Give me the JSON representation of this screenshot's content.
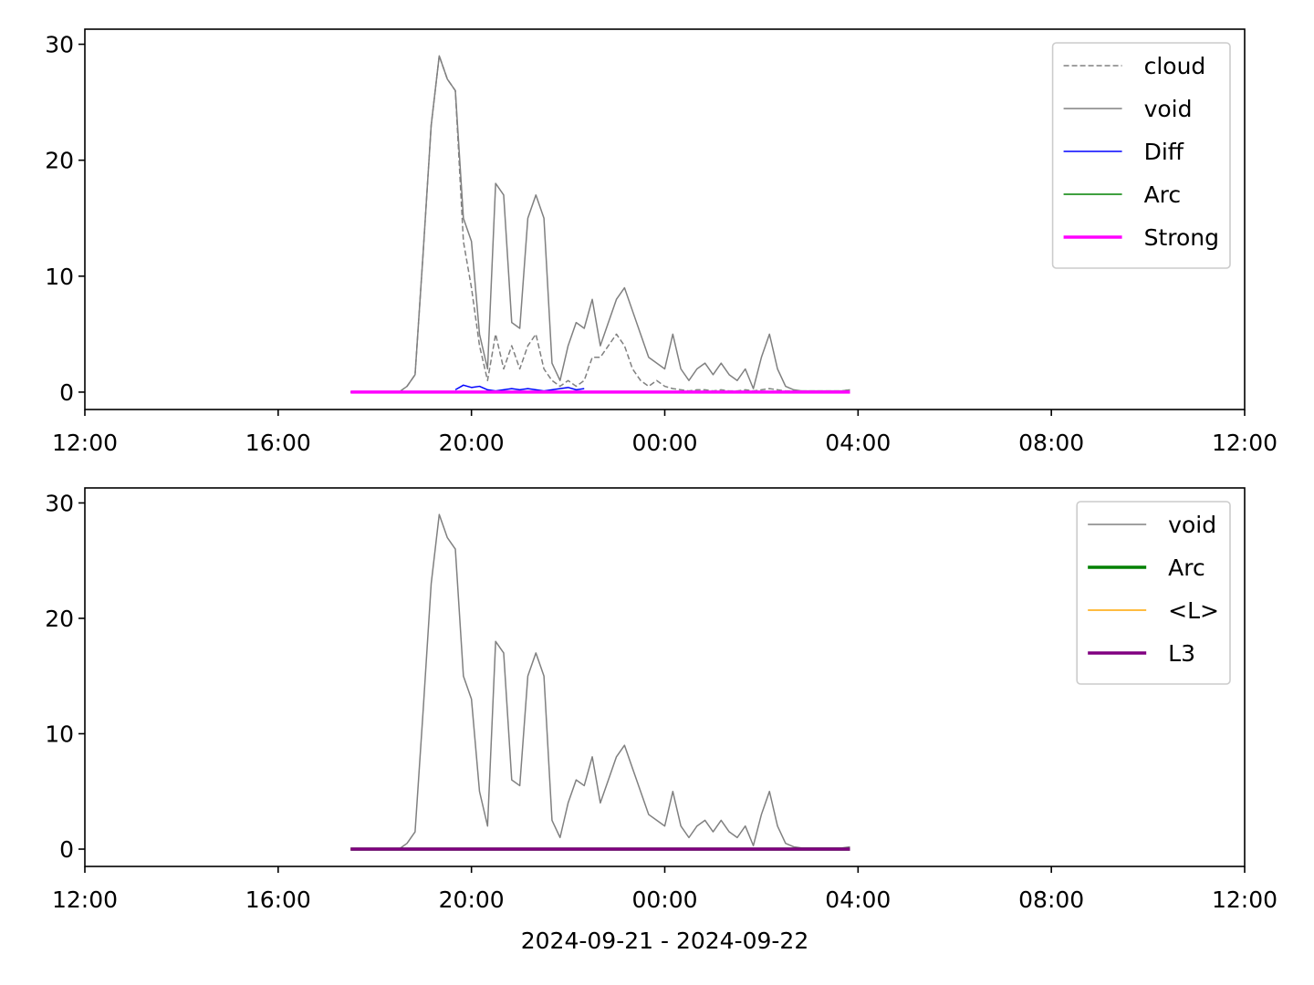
{
  "chart_data": [
    {
      "type": "line",
      "x": [
        "2024-09-21T17:30",
        "2024-09-21T17:40",
        "2024-09-21T17:50",
        "2024-09-21T18:00",
        "2024-09-21T18:10",
        "2024-09-21T18:20",
        "2024-09-21T18:30",
        "2024-09-21T18:40",
        "2024-09-21T18:50",
        "2024-09-21T19:00",
        "2024-09-21T19:10",
        "2024-09-21T19:20",
        "2024-09-21T19:30",
        "2024-09-21T19:40",
        "2024-09-21T19:50",
        "2024-09-21T20:00",
        "2024-09-21T20:10",
        "2024-09-21T20:20",
        "2024-09-21T20:30",
        "2024-09-21T20:40",
        "2024-09-21T20:50",
        "2024-09-21T21:00",
        "2024-09-21T21:10",
        "2024-09-21T21:20",
        "2024-09-21T21:30",
        "2024-09-21T21:40",
        "2024-09-21T21:50",
        "2024-09-21T22:00",
        "2024-09-21T22:10",
        "2024-09-21T22:20",
        "2024-09-21T22:30",
        "2024-09-21T22:40",
        "2024-09-21T22:50",
        "2024-09-21T23:00",
        "2024-09-21T23:10",
        "2024-09-21T23:20",
        "2024-09-21T23:30",
        "2024-09-21T23:40",
        "2024-09-21T23:50",
        "2024-09-22T00:00",
        "2024-09-22T00:10",
        "2024-09-22T00:20",
        "2024-09-22T00:30",
        "2024-09-22T00:40",
        "2024-09-22T00:50",
        "2024-09-22T01:00",
        "2024-09-22T01:10",
        "2024-09-22T01:20",
        "2024-09-22T01:30",
        "2024-09-22T01:40",
        "2024-09-22T01:50",
        "2024-09-22T02:00",
        "2024-09-22T02:10",
        "2024-09-22T02:20",
        "2024-09-22T02:30",
        "2024-09-22T02:40",
        "2024-09-22T02:50",
        "2024-09-22T03:00",
        "2024-09-22T03:10",
        "2024-09-22T03:20",
        "2024-09-22T03:30",
        "2024-09-22T03:40",
        "2024-09-22T03:50"
      ],
      "series": [
        {
          "name": "cloud",
          "color": "#808080",
          "style": "dashed",
          "width": 1.5,
          "values": [
            0,
            0,
            0,
            0,
            0,
            0,
            0,
            0.5,
            1.5,
            12,
            23,
            29,
            27,
            26,
            13,
            9,
            4,
            1,
            5,
            2,
            4,
            2,
            4,
            5,
            2,
            1,
            0.5,
            1,
            0.5,
            1,
            3,
            3,
            4,
            5,
            4,
            2,
            1,
            0.5,
            1,
            0.5,
            0.3,
            0.2,
            0.1,
            0.2,
            0.2,
            0.1,
            0.2,
            0.1,
            0.1,
            0.2,
            0.1,
            0.2,
            0.3,
            0.2,
            0.1,
            0.1,
            0.1,
            0.1,
            0.1,
            0.1,
            0.1,
            0.1,
            0.2
          ]
        },
        {
          "name": "void",
          "color": "#808080",
          "width": 1.5,
          "values": [
            0,
            0,
            0,
            0,
            0,
            0,
            0,
            0.5,
            1.5,
            12,
            23,
            29,
            27,
            26,
            15,
            13,
            5,
            2,
            18,
            17,
            6,
            5.5,
            15,
            17,
            15,
            2.5,
            1,
            4,
            6,
            5.5,
            8,
            4,
            6,
            8,
            9,
            7,
            5,
            3,
            2.5,
            2,
            5,
            2,
            1,
            2,
            2.5,
            1.5,
            2.5,
            1.5,
            1,
            2,
            0.3,
            3,
            5,
            2,
            0.5,
            0.2,
            0.1,
            0.1,
            0.1,
            0.1,
            0.1,
            0.1,
            0.2
          ]
        },
        {
          "name": "Diff",
          "color": "#0000ff",
          "width": 1.5,
          "values": [
            null,
            null,
            null,
            null,
            null,
            null,
            null,
            null,
            null,
            null,
            null,
            null,
            null,
            0.2,
            0.6,
            0.4,
            0.5,
            0.2,
            0.1,
            0.2,
            0.3,
            0.2,
            0.3,
            0.2,
            0.1,
            0.2,
            0.3,
            0.4,
            0.2,
            0.3,
            null,
            null,
            null,
            null,
            null,
            null,
            null,
            null,
            null,
            null,
            null,
            null,
            null,
            null,
            null,
            null,
            null,
            null,
            null,
            null,
            null,
            null,
            null,
            null,
            null,
            null,
            null,
            null,
            null,
            null,
            null,
            null,
            null
          ]
        },
        {
          "name": "Arc",
          "color": "#008000",
          "width": 1.5,
          "values": [
            0,
            0,
            0,
            0,
            0,
            0,
            0,
            0,
            0,
            0,
            0,
            0,
            0,
            0,
            0,
            0,
            0,
            0,
            0,
            0,
            0,
            0,
            0,
            0,
            0,
            0,
            0,
            0,
            0,
            0,
            0,
            0,
            0,
            0,
            0,
            0,
            0,
            0,
            0,
            0,
            0,
            0,
            0,
            0,
            0,
            0,
            0,
            0,
            0,
            0,
            0,
            0,
            0,
            0,
            0,
            0,
            0,
            0,
            0,
            0,
            0,
            0,
            0
          ]
        },
        {
          "name": "Strong",
          "color": "#ff00ff",
          "width": 3.5,
          "values": [
            0,
            0,
            0,
            0,
            0,
            0,
            0,
            0,
            0,
            0,
            0,
            0,
            0,
            0,
            0,
            0,
            0,
            0,
            0,
            0,
            0,
            0,
            0,
            0,
            0,
            0,
            0,
            0,
            0,
            0,
            0,
            0,
            0,
            0,
            0,
            0,
            0,
            0,
            0,
            0,
            0,
            0,
            0,
            0,
            0,
            0,
            0,
            0,
            0,
            0,
            0,
            0,
            0,
            0,
            0,
            0,
            0,
            0,
            0,
            0,
            0,
            0,
            0
          ]
        }
      ],
      "xlim": [
        "2024-09-21T12:00",
        "2024-09-22T12:00"
      ],
      "xticks": [
        {
          "value": "2024-09-21T12:00",
          "label": "12:00"
        },
        {
          "value": "2024-09-21T16:00",
          "label": "16:00"
        },
        {
          "value": "2024-09-21T20:00",
          "label": "20:00"
        },
        {
          "value": "2024-09-22T00:00",
          "label": "00:00"
        },
        {
          "value": "2024-09-22T04:00",
          "label": "04:00"
        },
        {
          "value": "2024-09-22T08:00",
          "label": "08:00"
        },
        {
          "value": "2024-09-22T12:00",
          "label": "12:00"
        }
      ],
      "ylim": [
        -1.5,
        31.3
      ],
      "yticks": [
        0,
        10,
        20,
        30
      ],
      "legend": "upper right"
    },
    {
      "type": "line",
      "x": [
        "2024-09-21T17:30",
        "2024-09-21T17:40",
        "2024-09-21T17:50",
        "2024-09-21T18:00",
        "2024-09-21T18:10",
        "2024-09-21T18:20",
        "2024-09-21T18:30",
        "2024-09-21T18:40",
        "2024-09-21T18:50",
        "2024-09-21T19:00",
        "2024-09-21T19:10",
        "2024-09-21T19:20",
        "2024-09-21T19:30",
        "2024-09-21T19:40",
        "2024-09-21T19:50",
        "2024-09-21T20:00",
        "2024-09-21T20:10",
        "2024-09-21T20:20",
        "2024-09-21T20:30",
        "2024-09-21T20:40",
        "2024-09-21T20:50",
        "2024-09-21T21:00",
        "2024-09-21T21:10",
        "2024-09-21T21:20",
        "2024-09-21T21:30",
        "2024-09-21T21:40",
        "2024-09-21T21:50",
        "2024-09-21T22:00",
        "2024-09-21T22:10",
        "2024-09-21T22:20",
        "2024-09-21T22:30",
        "2024-09-21T22:40",
        "2024-09-21T22:50",
        "2024-09-21T23:00",
        "2024-09-21T23:10",
        "2024-09-21T23:20",
        "2024-09-21T23:30",
        "2024-09-21T23:40",
        "2024-09-21T23:50",
        "2024-09-22T00:00",
        "2024-09-22T00:10",
        "2024-09-22T00:20",
        "2024-09-22T00:30",
        "2024-09-22T00:40",
        "2024-09-22T00:50",
        "2024-09-22T01:00",
        "2024-09-22T01:10",
        "2024-09-22T01:20",
        "2024-09-22T01:30",
        "2024-09-22T01:40",
        "2024-09-22T01:50",
        "2024-09-22T02:00",
        "2024-09-22T02:10",
        "2024-09-22T02:20",
        "2024-09-22T02:30",
        "2024-09-22T02:40",
        "2024-09-22T02:50",
        "2024-09-22T03:00",
        "2024-09-22T03:10",
        "2024-09-22T03:20",
        "2024-09-22T03:30",
        "2024-09-22T03:40",
        "2024-09-22T03:50"
      ],
      "series": [
        {
          "name": "void",
          "color": "#808080",
          "width": 1.5,
          "values": [
            0,
            0,
            0,
            0,
            0,
            0,
            0,
            0.5,
            1.5,
            12,
            23,
            29,
            27,
            26,
            15,
            13,
            5,
            2,
            18,
            17,
            6,
            5.5,
            15,
            17,
            15,
            2.5,
            1,
            4,
            6,
            5.5,
            8,
            4,
            6,
            8,
            9,
            7,
            5,
            3,
            2.5,
            2,
            5,
            2,
            1,
            2,
            2.5,
            1.5,
            2.5,
            1.5,
            1,
            2,
            0.3,
            3,
            5,
            2,
            0.5,
            0.2,
            0.1,
            0.1,
            0.1,
            0.1,
            0.1,
            0.1,
            0.2
          ]
        },
        {
          "name": "Arc",
          "color": "#008000",
          "width": 3.5,
          "values": [
            0,
            0,
            0,
            0,
            0,
            0,
            0,
            0,
            0,
            0,
            0,
            0,
            0,
            0,
            0,
            0,
            0,
            0,
            0,
            0,
            0,
            0,
            0,
            0,
            0,
            0,
            0,
            0,
            0,
            0,
            0,
            0,
            0,
            0,
            0,
            0,
            0,
            0,
            0,
            0,
            0,
            0,
            0,
            0,
            0,
            0,
            0,
            0,
            0,
            0,
            0,
            0,
            0,
            0,
            0,
            0,
            0,
            0,
            0,
            0,
            0,
            0,
            0
          ]
        },
        {
          "name": "<L>",
          "color": "#ffa500",
          "width": 1.5,
          "values": [
            0,
            0,
            0,
            0,
            0,
            0,
            0,
            0,
            0,
            0,
            0,
            0,
            0,
            0,
            0,
            0,
            0,
            0,
            0,
            0,
            0,
            0,
            0,
            0,
            0,
            0,
            0,
            0,
            0,
            0,
            0,
            0,
            0,
            0,
            0,
            0,
            0,
            0,
            0,
            0,
            0,
            0,
            0,
            0,
            0,
            0,
            0,
            0,
            0,
            0,
            0,
            0,
            0,
            0,
            0,
            0,
            0,
            0,
            0,
            0,
            0,
            0,
            0
          ]
        },
        {
          "name": "L3",
          "color": "#800080",
          "width": 3.5,
          "values": [
            0,
            0,
            0,
            0,
            0,
            0,
            0,
            0,
            0,
            0,
            0,
            0,
            0,
            0,
            0,
            0,
            0,
            0,
            0,
            0,
            0,
            0,
            0,
            0,
            0,
            0,
            0,
            0,
            0,
            0,
            0,
            0,
            0,
            0,
            0,
            0,
            0,
            0,
            0,
            0,
            0,
            0,
            0,
            0,
            0,
            0,
            0,
            0,
            0,
            0,
            0,
            0,
            0,
            0,
            0,
            0,
            0,
            0,
            0,
            0,
            0,
            0,
            0
          ]
        }
      ],
      "xlim": [
        "2024-09-21T12:00",
        "2024-09-22T12:00"
      ],
      "xticks": [
        {
          "value": "2024-09-21T12:00",
          "label": "12:00"
        },
        {
          "value": "2024-09-21T16:00",
          "label": "16:00"
        },
        {
          "value": "2024-09-21T20:00",
          "label": "20:00"
        },
        {
          "value": "2024-09-22T00:00",
          "label": "00:00"
        },
        {
          "value": "2024-09-22T04:00",
          "label": "04:00"
        },
        {
          "value": "2024-09-22T08:00",
          "label": "08:00"
        },
        {
          "value": "2024-09-22T12:00",
          "label": "12:00"
        }
      ],
      "ylim": [
        -1.5,
        31.3
      ],
      "yticks": [
        0,
        10,
        20,
        30
      ],
      "legend": "upper right",
      "xlabel": "2024-09-21 - 2024-09-22"
    }
  ]
}
